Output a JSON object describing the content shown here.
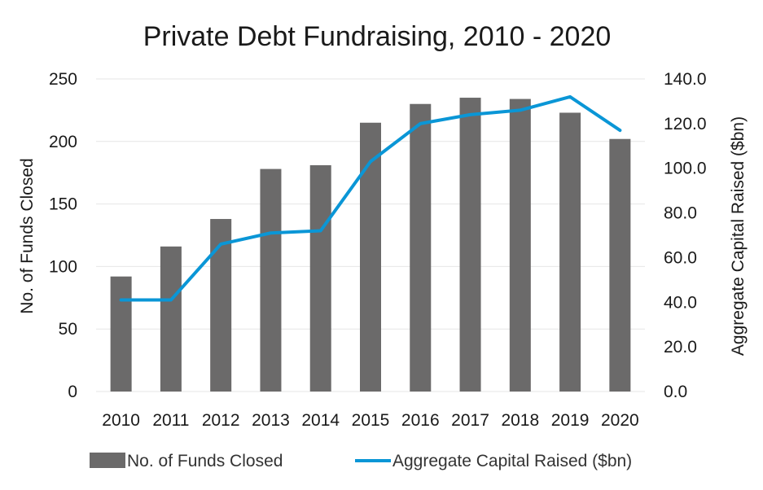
{
  "chart_data": {
    "type": "bar",
    "title": "Private Debt Fundraising, 2010 - 2020",
    "categories": [
      "2010",
      "2011",
      "2012",
      "2013",
      "2014",
      "2015",
      "2016",
      "2017",
      "2018",
      "2019",
      "2020"
    ],
    "series": [
      {
        "name": "No. of Funds Closed",
        "type": "bar",
        "axis": "left",
        "color": "#6b6a6a",
        "values": [
          92,
          116,
          138,
          178,
          181,
          215,
          230,
          235,
          234,
          223,
          202
        ]
      },
      {
        "name": "Aggregate Capital Raised ($bn)",
        "type": "line",
        "axis": "right",
        "color": "#0a96d6",
        "values": [
          41.0,
          41.0,
          66.0,
          71.0,
          72.0,
          103.0,
          120.0,
          124.0,
          126.0,
          132.0,
          117.0
        ]
      }
    ],
    "ylabel": "No. of Funds Closed",
    "ylim": [
      0,
      250
    ],
    "yticks": [
      "0",
      "50",
      "100",
      "150",
      "200",
      "250"
    ],
    "y2label": "Aggregate Capital Raised ($bn)",
    "y2lim": [
      0,
      140
    ],
    "y2ticks": [
      "0.0",
      "20.0",
      "40.0",
      "60.0",
      "80.0",
      "100.0",
      "120.0",
      "140.0"
    ],
    "grid": true,
    "legend": "bottom"
  }
}
